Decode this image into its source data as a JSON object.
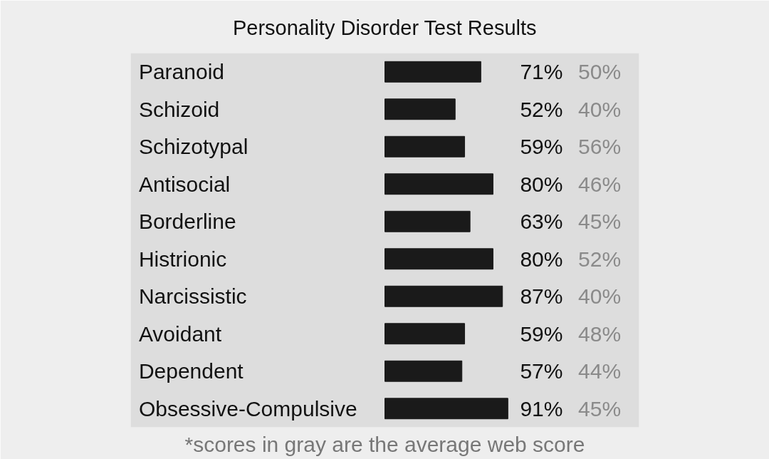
{
  "chart_data": {
    "type": "bar",
    "orientation": "horizontal",
    "title": "Personality Disorder Test Results",
    "categories": [
      "Paranoid",
      "Schizoid",
      "Schizotypal",
      "Antisocial",
      "Borderline",
      "Histrionic",
      "Narcissistic",
      "Avoidant",
      "Dependent",
      "Obsessive-Compulsive"
    ],
    "series": [
      {
        "color": "#1a1a1a",
        "values": [
          71,
          52,
          59,
          80,
          63,
          80,
          87,
          59,
          57,
          91
        ],
        "value_labels": [
          "71%",
          "52%",
          "59%",
          "80%",
          "63%",
          "80%",
          "87%",
          "59%",
          "57%",
          "91%"
        ]
      }
    ],
    "grid": false,
    "tick_labels": false,
    "annotations": [
      "50%",
      "40%",
      "56%",
      "46%",
      "45%",
      "52%",
      "40%",
      "48%",
      "44%",
      "45%",
      "*scores in gray are the average web score"
    ]
  }
}
